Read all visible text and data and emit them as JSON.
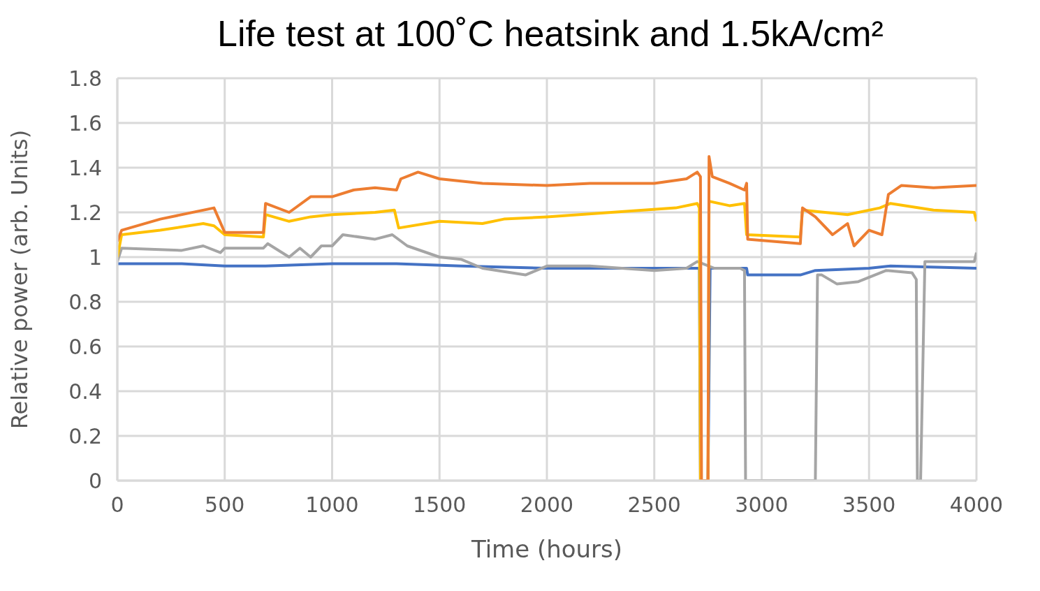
{
  "chart_data": {
    "type": "line",
    "title": "Life test at 100˚C heatsink and 1.5kA/cm²",
    "xlabel": "Time (hours)",
    "ylabel": "Relative power (arb. Units)",
    "xlim": [
      0,
      4000
    ],
    "xticks": [
      0,
      500,
      1000,
      1500,
      2000,
      2500,
      3000,
      3500,
      4000
    ],
    "ylim": [
      0,
      1.8
    ],
    "yticks": [
      0,
      0.2,
      0.4,
      0.6,
      0.8,
      1,
      1.2,
      1.4,
      1.6,
      1.8
    ],
    "grid": true,
    "legend": false,
    "marker": "none",
    "line_style": "solid",
    "series": [
      {
        "color": "#4472c4",
        "x": [
          0,
          20,
          300,
          500,
          690,
          1000,
          1300,
          1600,
          2000,
          2700,
          2710,
          2715,
          2750,
          2760,
          2930,
          2935,
          3180,
          3250,
          3500,
          3600,
          4000
        ],
        "values": [
          0.97,
          0.97,
          0.97,
          0.96,
          0.96,
          0.97,
          0.97,
          0.96,
          0.95,
          0.95,
          0.95,
          0,
          0,
          0.95,
          0.95,
          0.92,
          0.92,
          0.94,
          0.95,
          0.96,
          0.95
        ]
      },
      {
        "color": "#a5a5a5",
        "x": [
          0,
          20,
          300,
          400,
          480,
          500,
          680,
          700,
          800,
          850,
          900,
          950,
          1000,
          1050,
          1200,
          1280,
          1350,
          1500,
          1600,
          1700,
          1900,
          2000,
          2200,
          2500,
          2650,
          2700,
          2780,
          2900,
          2920,
          2925,
          3250,
          3260,
          3280,
          3350,
          3450,
          3580,
          3700,
          3720,
          3725,
          3740,
          3760,
          3990,
          4000
        ],
        "values": [
          0.98,
          1.04,
          1.03,
          1.05,
          1.02,
          1.04,
          1.04,
          1.06,
          1,
          1.04,
          1,
          1.05,
          1.05,
          1.1,
          1.08,
          1.1,
          1.05,
          1,
          0.99,
          0.95,
          0.92,
          0.96,
          0.96,
          0.94,
          0.95,
          0.98,
          0.95,
          0.95,
          0.94,
          0,
          0,
          0.92,
          0.92,
          0.88,
          0.89,
          0.94,
          0.93,
          0.9,
          0,
          0,
          0.98,
          0.98,
          1.02
        ]
      },
      {
        "color": "#ffc000",
        "x": [
          0,
          20,
          200,
          400,
          450,
          500,
          680,
          690,
          800,
          900,
          1000,
          1200,
          1290,
          1310,
          1500,
          1700,
          1800,
          2000,
          2300,
          2600,
          2700,
          2710,
          2715,
          2750,
          2755,
          2850,
          2920,
          2930,
          3180,
          3190,
          3400,
          3550,
          3600,
          3800,
          3990,
          4000
        ],
        "values": [
          1,
          1.1,
          1.12,
          1.15,
          1.14,
          1.1,
          1.09,
          1.19,
          1.16,
          1.18,
          1.19,
          1.2,
          1.21,
          1.13,
          1.16,
          1.15,
          1.17,
          1.18,
          1.2,
          1.22,
          1.24,
          1.22,
          0,
          0,
          1.25,
          1.23,
          1.24,
          1.1,
          1.09,
          1.21,
          1.19,
          1.22,
          1.24,
          1.21,
          1.2,
          1.16
        ]
      },
      {
        "color": "#ed7d31",
        "x": [
          0,
          20,
          200,
          450,
          500,
          680,
          690,
          800,
          900,
          1000,
          1100,
          1200,
          1300,
          1320,
          1400,
          1500,
          1700,
          2000,
          2200,
          2500,
          2650,
          2700,
          2715,
          2720,
          2750,
          2755,
          2770,
          2850,
          2920,
          2930,
          2935,
          3180,
          3190,
          3250,
          3330,
          3400,
          3430,
          3500,
          3560,
          3590,
          3650,
          3800,
          4000
        ],
        "values": [
          1.07,
          1.12,
          1.17,
          1.22,
          1.11,
          1.11,
          1.24,
          1.2,
          1.27,
          1.27,
          1.3,
          1.31,
          1.3,
          1.35,
          1.38,
          1.35,
          1.33,
          1.32,
          1.33,
          1.33,
          1.35,
          1.38,
          1.36,
          0,
          0,
          1.45,
          1.36,
          1.33,
          1.3,
          1.33,
          1.08,
          1.06,
          1.22,
          1.18,
          1.1,
          1.15,
          1.05,
          1.12,
          1.1,
          1.28,
          1.32,
          1.31,
          1.32
        ]
      }
    ]
  }
}
